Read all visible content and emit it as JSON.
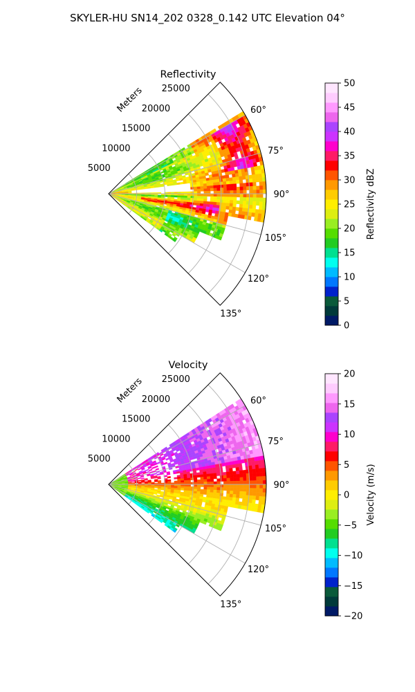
{
  "figure": {
    "title": "SKYLER-HU  SN14_202  0328_0.142 UTC Elevation 04°"
  },
  "chart_data": [
    {
      "type": "heatmap",
      "subtype": "polar-sector-ppi",
      "title": "Reflectivity",
      "radial_axis_label": "Meters",
      "radial_ticks": [
        5000,
        10000,
        15000,
        20000,
        25000
      ],
      "radial_tick_labels": [
        "5000",
        "10000",
        "15000",
        "20000",
        "25000"
      ],
      "radial_range": [
        0,
        28000
      ],
      "azimuth_range_deg": [
        45,
        135
      ],
      "azimuth_ticks": [
        60,
        75,
        90,
        105,
        120,
        135
      ],
      "azimuth_tick_labels": [
        "60°",
        "75°",
        "90°",
        "105°",
        "120°",
        "135°"
      ],
      "grid": true,
      "colorbar": {
        "label": "Reflectivity dBZ",
        "range": [
          0,
          50
        ],
        "ticks": [
          0,
          5,
          10,
          15,
          20,
          25,
          30,
          35,
          40,
          45,
          50
        ],
        "tick_labels": [
          "0",
          "5",
          "10",
          "15",
          "20",
          "25",
          "30",
          "35",
          "40",
          "45",
          "50"
        ],
        "colors": [
          "#001a66",
          "#003a3a",
          "#0a5a3a",
          "#0022cc",
          "#0077ff",
          "#00bbff",
          "#00ffee",
          "#00e090",
          "#22cc22",
          "#55dd00",
          "#99ee22",
          "#ddee11",
          "#ffee00",
          "#ffcc00",
          "#ff9900",
          "#ff5500",
          "#ff0000",
          "#ff1a66",
          "#ff00cc",
          "#cc33ff",
          "#aa44ff",
          "#ee66ee",
          "#ff99ff",
          "#ffccff",
          "#ffe6ff"
        ]
      },
      "field_description": "values mostly 18-32 dBZ across the sector with bands of 35-45 dBZ near 60-90° and around 95-105°, clear area near 85° at 8000-12000 m",
      "typical_range": [
        15,
        45
      ]
    },
    {
      "type": "heatmap",
      "subtype": "polar-sector-ppi",
      "title": "Velocity",
      "radial_axis_label": "Meters",
      "radial_ticks": [
        5000,
        10000,
        15000,
        20000,
        25000
      ],
      "radial_tick_labels": [
        "5000",
        "10000",
        "15000",
        "20000",
        "25000"
      ],
      "radial_range": [
        0,
        28000
      ],
      "azimuth_range_deg": [
        45,
        135
      ],
      "azimuth_ticks": [
        60,
        75,
        90,
        105,
        120,
        135
      ],
      "azimuth_tick_labels": [
        "60°",
        "75°",
        "90°",
        "105°",
        "120°",
        "135°"
      ],
      "grid": true,
      "colorbar": {
        "label": "Velocity (m/s)",
        "range": [
          -20,
          20
        ],
        "ticks": [
          -20,
          -15,
          -10,
          -5,
          0,
          5,
          10,
          15,
          20
        ],
        "tick_labels": [
          "−20",
          "−15",
          "−10",
          "−5",
          "0",
          "5",
          "10",
          "15",
          "20"
        ],
        "colors": [
          "#001a66",
          "#003a3a",
          "#0a5a3a",
          "#0022cc",
          "#0077ff",
          "#00bbff",
          "#00ffee",
          "#00e090",
          "#22cc22",
          "#55dd00",
          "#99ee22",
          "#ddee11",
          "#ffee00",
          "#ffcc00",
          "#ff9900",
          "#ff5500",
          "#ff0000",
          "#ff1a66",
          "#ff00cc",
          "#cc33ff",
          "#aa44ff",
          "#ee66ee",
          "#ff99ff",
          "#ffccff",
          "#ffe6ff"
        ]
      },
      "field_description": "+10 to +18 m/s (magenta) at 55-80° far range, +5 to +10 m/s (red/orange) near 80-100°, 0 to +5 m/s (yellow) at 95-110°, -3 to -10 m/s (green) at 110-125° and near the origin",
      "typical_range": [
        -10,
        18
      ]
    }
  ]
}
